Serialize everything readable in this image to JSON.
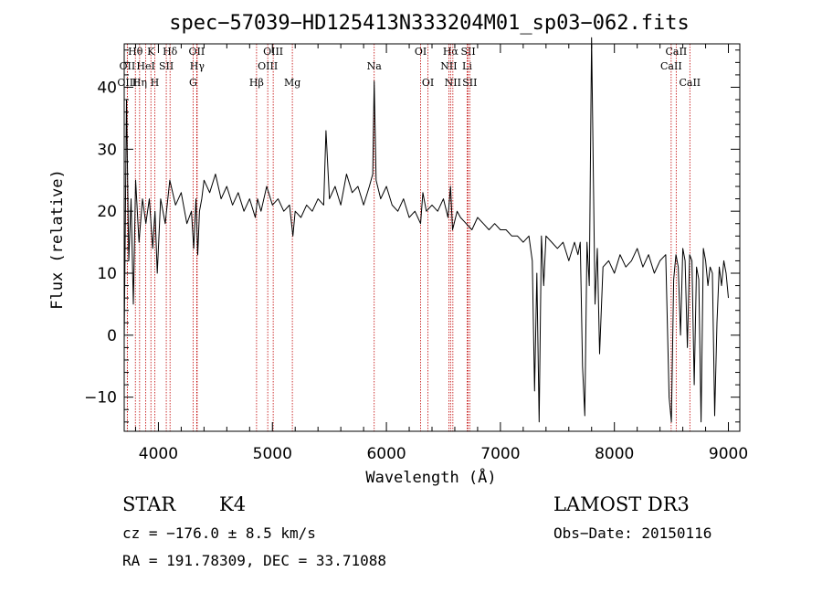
{
  "chart_data": {
    "type": "line",
    "title": "spec−57039−HD125413N333204M01_sp03−062.fits",
    "xlabel": "Wavelength (Å)",
    "ylabel": "Flux (relative)",
    "xlim": [
      3700,
      9100
    ],
    "ylim": [
      -15.5,
      47
    ],
    "x_ticks": [
      4000,
      5000,
      6000,
      7000,
      8000,
      9000
    ],
    "x_tick_labels": [
      "4000",
      "5000",
      "6000",
      "7000",
      "8000",
      "9000"
    ],
    "y_ticks": [
      -10,
      0,
      10,
      20,
      30,
      40
    ],
    "y_tick_labels": [
      "−10",
      "0",
      "10",
      "20",
      "30",
      "40"
    ],
    "series": [
      {
        "name": "spectrum",
        "x": [
          3700,
          3720,
          3740,
          3760,
          3780,
          3800,
          3830,
          3860,
          3890,
          3920,
          3950,
          3970,
          3990,
          4020,
          4060,
          4100,
          4150,
          4200,
          4250,
          4290,
          4310,
          4330,
          4345,
          4360,
          4380,
          4400,
          4450,
          4500,
          4550,
          4600,
          4650,
          4700,
          4750,
          4800,
          4850,
          4870,
          4900,
          4950,
          5000,
          5050,
          5100,
          5150,
          5180,
          5200,
          5250,
          5300,
          5350,
          5400,
          5450,
          5470,
          5500,
          5550,
          5600,
          5650,
          5700,
          5750,
          5800,
          5850,
          5880,
          5893,
          5910,
          5950,
          6000,
          6050,
          6100,
          6150,
          6200,
          6250,
          6300,
          6320,
          6350,
          6400,
          6450,
          6500,
          6540,
          6563,
          6580,
          6620,
          6650,
          6700,
          6750,
          6800,
          6850,
          6900,
          6950,
          7000,
          7050,
          7100,
          7150,
          7200,
          7250,
          7280,
          7300,
          7320,
          7340,
          7360,
          7380,
          7400,
          7450,
          7500,
          7550,
          7600,
          7650,
          7680,
          7700,
          7720,
          7740,
          7760,
          7780,
          7800,
          7830,
          7850,
          7870,
          7900,
          7950,
          8000,
          8050,
          8100,
          8150,
          8200,
          8250,
          8300,
          8350,
          8400,
          8450,
          8480,
          8500,
          8520,
          8540,
          8560,
          8580,
          8600,
          8620,
          8640,
          8660,
          8680,
          8700,
          8720,
          8740,
          8760,
          8780,
          8800,
          8820,
          8840,
          8860,
          8880,
          8900,
          8920,
          8940,
          8960,
          8980,
          9000
        ],
        "y": [
          -1,
          38,
          12,
          22,
          5,
          25,
          15,
          22,
          18,
          22,
          14,
          20,
          10,
          22,
          18,
          25,
          21,
          23,
          18,
          20,
          14,
          22,
          13,
          20,
          22,
          25,
          23,
          26,
          22,
          24,
          21,
          23,
          20,
          22,
          19,
          22,
          20,
          24,
          21,
          22,
          20,
          21,
          16,
          20,
          19,
          21,
          20,
          22,
          21,
          33,
          22,
          24,
          21,
          26,
          23,
          24,
          21,
          24,
          26,
          41,
          25,
          22,
          24,
          21,
          20,
          22,
          19,
          20,
          18,
          23,
          20,
          21,
          20,
          22,
          19,
          24,
          17,
          20,
          19,
          18,
          17,
          19,
          18,
          17,
          18,
          17,
          17,
          16,
          16,
          15,
          16,
          12,
          -9,
          10,
          -14,
          16,
          8,
          16,
          15,
          14,
          15,
          12,
          15,
          13,
          15,
          -5,
          -13,
          15,
          8,
          48,
          5,
          14,
          -3,
          11,
          12,
          10,
          13,
          11,
          12,
          14,
          11,
          13,
          10,
          12,
          13,
          -10,
          -14,
          9,
          13,
          11,
          0,
          14,
          12,
          -2,
          13,
          12,
          -8,
          11,
          9,
          -14,
          14,
          12,
          8,
          11,
          10,
          -13,
          2,
          11,
          8,
          12,
          10,
          6
        ],
        "color": "#000000"
      }
    ],
    "line_markers": [
      {
        "label": "Hθ",
        "wavelength": 3798,
        "row": 0
      },
      {
        "label": "K",
        "wavelength": 3934,
        "row": 0
      },
      {
        "label": "Hδ",
        "wavelength": 4102,
        "row": 0
      },
      {
        "label": "OII",
        "wavelength": 4336,
        "row": 0
      },
      {
        "label": "OIII",
        "wavelength": 5007,
        "row": 0
      },
      {
        "label": "OI",
        "wavelength": 6300,
        "row": 0
      },
      {
        "label": "Hα",
        "wavelength": 6563,
        "row": 0
      },
      {
        "label": "SII",
        "wavelength": 6717,
        "row": 0
      },
      {
        "label": "CaII",
        "wavelength": 8542,
        "row": 0
      },
      {
        "label": "OII",
        "wavelength": 3727,
        "row": 1
      },
      {
        "label": "HeI",
        "wavelength": 3889,
        "row": 1
      },
      {
        "label": "SII",
        "wavelength": 4069,
        "row": 1
      },
      {
        "label": "Hγ",
        "wavelength": 4340,
        "row": 1
      },
      {
        "label": "OIII",
        "wavelength": 4959,
        "row": 1
      },
      {
        "label": "Na",
        "wavelength": 5893,
        "row": 1
      },
      {
        "label": "NII",
        "wavelength": 6548,
        "row": 1
      },
      {
        "label": "Li",
        "wavelength": 6708,
        "row": 1
      },
      {
        "label": "CaII",
        "wavelength": 8498,
        "row": 1
      },
      {
        "label": "OIII",
        "wavelength": 3727,
        "row": 2
      },
      {
        "label": "Hη",
        "wavelength": 3835,
        "row": 2
      },
      {
        "label": "H",
        "wavelength": 3968,
        "row": 2
      },
      {
        "label": "G",
        "wavelength": 4304,
        "row": 2
      },
      {
        "label": "Hβ",
        "wavelength": 4861,
        "row": 2
      },
      {
        "label": "Mg",
        "wavelength": 5175,
        "row": 2
      },
      {
        "label": "OI",
        "wavelength": 6364,
        "row": 2
      },
      {
        "label": "NII",
        "wavelength": 6583,
        "row": 2
      },
      {
        "label": "SII",
        "wavelength": 6731,
        "row": 2
      },
      {
        "label": "CaII",
        "wavelength": 8662,
        "row": 2
      }
    ]
  },
  "info": {
    "class_label": "STAR",
    "subclass": "K4",
    "survey": "LAMOST DR3",
    "cz_text": "cz = −176.0 ± 8.5 km/s",
    "obs_date_text": "Obs−Date: 20150116",
    "radec_text": "RA = 191.78309, DEC =  33.71088"
  },
  "colors": {
    "spectrum": "#000000",
    "marker_line": "#c00000",
    "axis": "#000000"
  }
}
